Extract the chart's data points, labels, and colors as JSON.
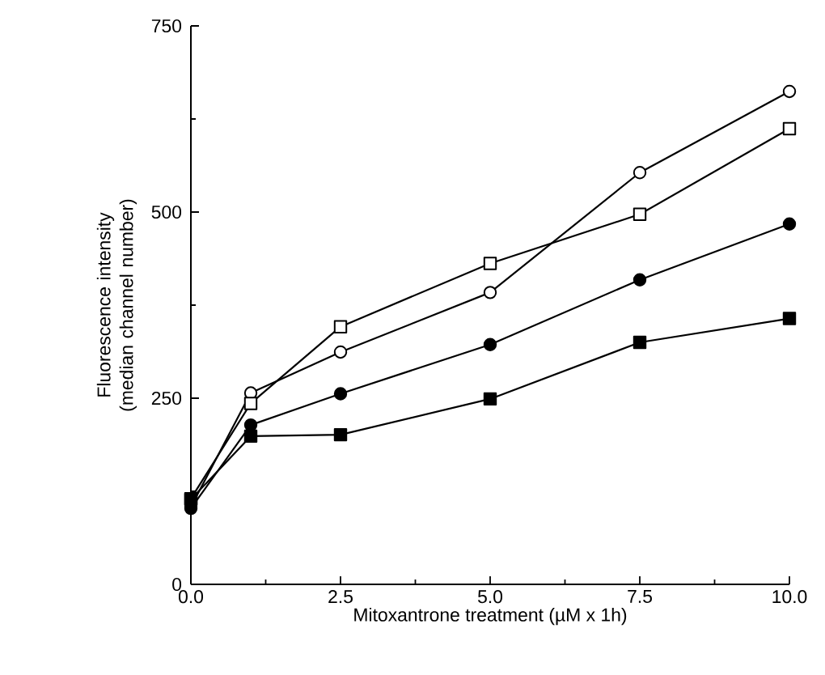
{
  "chart_data": {
    "type": "line",
    "xlabel": "Mitoxantrone treatment (µM x 1h)",
    "ylabel": "Fluorescence intensity (median channel number)",
    "x": [
      0,
      1,
      2.5,
      5,
      7.5,
      10
    ],
    "xlim": [
      0,
      10
    ],
    "ylim": [
      0,
      750
    ],
    "xticks": [
      {
        "value": 0,
        "label": "0.0"
      },
      {
        "value": 2.5,
        "label": "2.5"
      },
      {
        "value": 5,
        "label": "5.0"
      },
      {
        "value": 7.5,
        "label": "7.5"
      },
      {
        "value": 10,
        "label": "10.0"
      }
    ],
    "yticks": [
      0,
      250,
      500,
      750
    ],
    "line_style": "solid",
    "grid": false,
    "series": [
      {
        "color": "#ffffff",
        "marker": "circle",
        "values": [
          104,
          257,
          312,
          392,
          553,
          662
        ]
      },
      {
        "color": "#ffffff",
        "marker": "square",
        "values": [
          115,
          243,
          346,
          431,
          497,
          612
        ]
      },
      {
        "color": "#000000",
        "marker": "circle",
        "values": [
          102,
          214,
          256,
          322,
          409,
          484
        ]
      },
      {
        "color": "#000000",
        "marker": "square",
        "values": [
          114,
          199,
          201,
          249,
          325,
          357
        ]
      }
    ]
  }
}
